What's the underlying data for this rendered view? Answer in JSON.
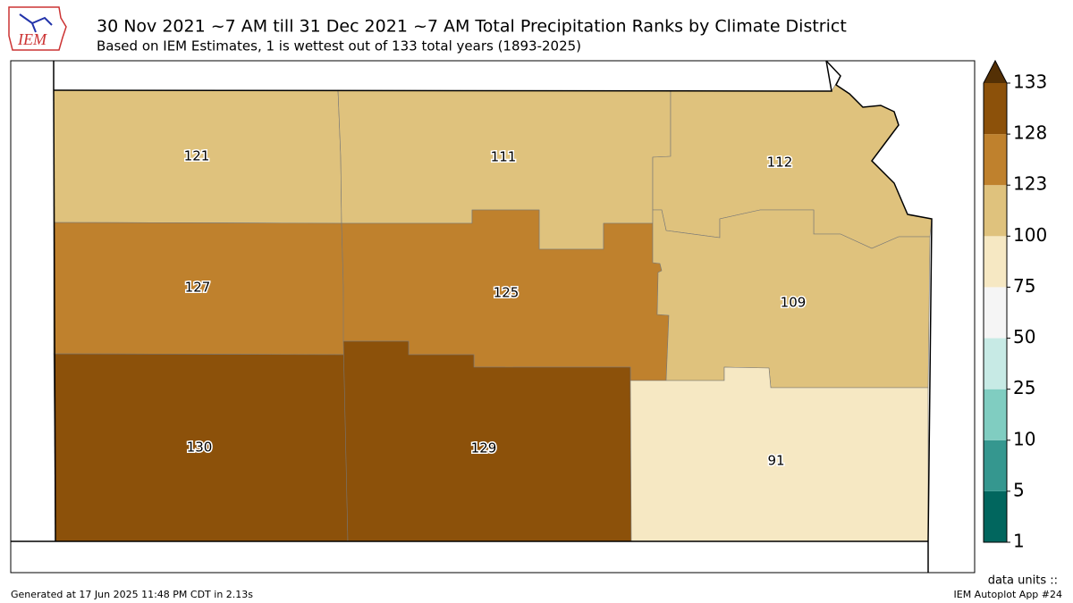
{
  "logo": "IEM",
  "header": {
    "title": "30 Nov 2021 ~7 AM till 31 Dec 2021 ~7 AM Total Precipitation Ranks by Climate District",
    "subtitle": "Based on IEM Estimates, 1 is wettest out of 133 total years (1893-2025)"
  },
  "districts": [
    121,
    111,
    112,
    127,
    125,
    109,
    130,
    129,
    91
  ],
  "colorbar": {
    "ticks": [
      1,
      5,
      10,
      25,
      50,
      75,
      100,
      123,
      128,
      133
    ],
    "colors": [
      "#01665e",
      "#35978f",
      "#80cdc1",
      "#c7eae5",
      "#f5f5f5",
      "#f6e8c3",
      "#dfc27d",
      "#bf812d",
      "#8c510a"
    ],
    "extend_color": "#543005"
  },
  "units_label": "data units ::",
  "footer": {
    "left": "Generated at 17 Jun 2025 11:48 PM CDT in 2.13s",
    "right": "IEM Autoplot App #24"
  }
}
